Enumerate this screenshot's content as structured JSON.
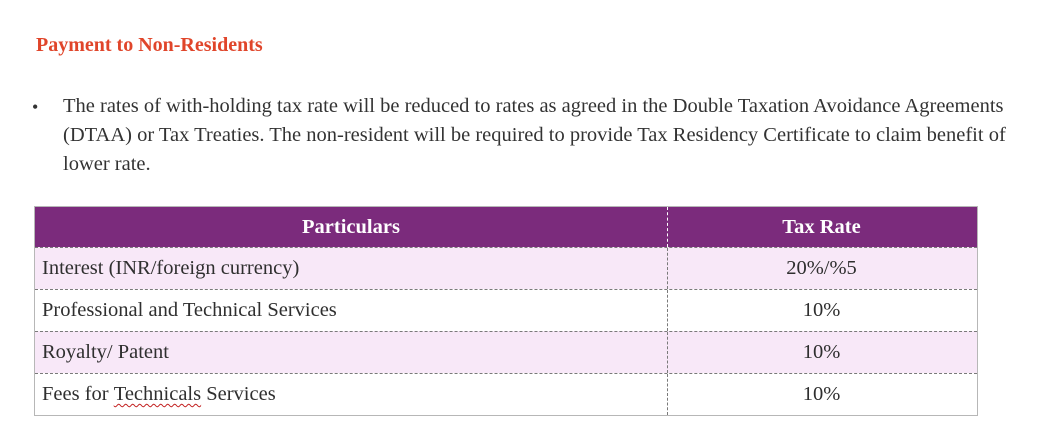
{
  "section": {
    "heading": "Payment to Non-Residents"
  },
  "paragraph": {
    "bullet": "•",
    "text": "The rates of with-holding tax rate will be reduced to rates as agreed in the Double Taxation Avoidance Agreements (DTAA) or Tax Treaties. The non-resident will be required to provide Tax Residency Certificate to claim benefit of lower rate."
  },
  "table": {
    "header_color": "#7b2b7c",
    "shade_color": "#f8e8f8",
    "columns": [
      "Particulars",
      "Tax Rate"
    ],
    "rows": [
      {
        "particulars": "Interest (INR/foreign currency)",
        "rate": "20%/%5",
        "shaded": true
      },
      {
        "particulars": "Professional and Technical Services",
        "rate": "10%",
        "shaded": false
      },
      {
        "particulars": "Royalty/ Patent",
        "rate": "10%",
        "shaded": true
      },
      {
        "particulars_prefix": "Fees for ",
        "particulars_flagged": "Technicals",
        "particulars_suffix": " Services",
        "rate": "10%",
        "shaded": false
      }
    ]
  }
}
